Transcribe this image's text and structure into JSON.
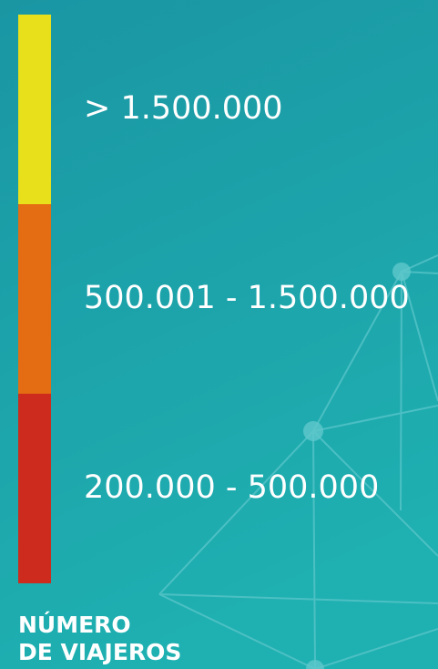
{
  "legend": {
    "items": [
      {
        "label": "> 1.500.000",
        "color": "#e8e01a"
      },
      {
        "label": "500.001 - 1.500.000",
        "color": "#e46c12"
      },
      {
        "label": "200.000 - 500.000",
        "color": "#cc2b1d"
      }
    ],
    "title": [
      "NÚMERO",
      "DE VIAJEROS"
    ]
  }
}
